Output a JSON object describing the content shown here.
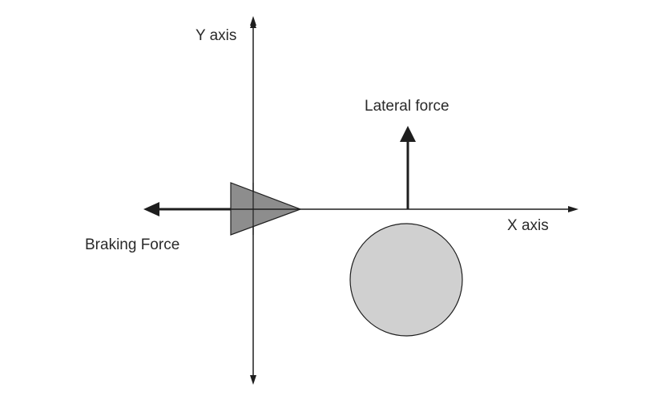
{
  "labels": {
    "y_axis": "Y axis",
    "x_axis": "X axis",
    "lateral_force": "Lateral force",
    "braking_force": "Braking Force"
  },
  "colors": {
    "line": "#1e1e1e",
    "triangle_fill": "#8d8d8d",
    "circle_fill": "#d0d0d0"
  }
}
